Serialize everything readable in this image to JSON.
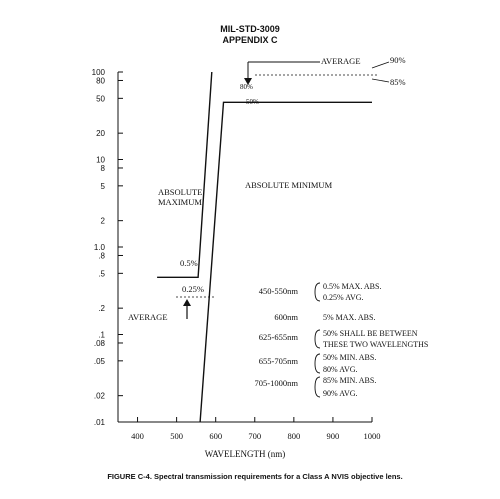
{
  "header": {
    "line1": "MIL-STD-3009",
    "line2": "APPENDIX C"
  },
  "caption": "FIGURE C-4.  Spectral transmission requirements for a Class A NVIS objective lens.",
  "chart_data": {
    "type": "line",
    "xlabel": "WAVELENGTH (nm)",
    "ylabel": "",
    "x_ticks": [
      400,
      500,
      600,
      700,
      800,
      900,
      1000
    ],
    "x_tick_labels": [
      "400",
      "500",
      "600",
      "700",
      "800",
      "900",
      "1000"
    ],
    "y_scale": "log",
    "y_ticks": [
      0.01,
      0.02,
      0.05,
      0.08,
      0.1,
      0.2,
      0.5,
      0.8,
      1.0,
      2,
      5,
      8,
      10,
      20,
      50,
      80,
      100
    ],
    "y_tick_labels": [
      ".01",
      ".02",
      ".05",
      ".08",
      ".1",
      ".2",
      ".5",
      ".8",
      "1.0",
      "2",
      "5",
      "8",
      "10",
      "20",
      "50",
      "80",
      "100"
    ],
    "xlim": [
      350,
      1000
    ],
    "ylim": [
      0.01,
      100
    ],
    "series": [
      {
        "points": [
          [
            450,
            0.45
          ],
          [
            555,
            0.45
          ],
          [
            590,
            100
          ]
        ]
      },
      {
        "points": [
          [
            560,
            0.01
          ],
          [
            620,
            45
          ],
          [
            1000,
            45
          ]
        ]
      }
    ],
    "annotations": {
      "absolute_maximum": [
        "ABSOLUTE",
        "MAXIMUM"
      ],
      "absolute_minimum": "ABSOLUTE MINIMUM",
      "pct_05": "0.5%",
      "pct_025": "0.25%",
      "average_left": "AVERAGE",
      "average_top": "AVERAGE",
      "pct_90": "90%",
      "pct_85": "85%",
      "pct_80": "80%",
      "pct_50": "50%"
    },
    "requirements": [
      {
        "range": "450-550nm",
        "lines": [
          "0.5% MAX. ABS.",
          "0.25% AVG."
        ]
      },
      {
        "range": "600nm",
        "lines": [
          "5% MAX. ABS."
        ]
      },
      {
        "range": "625-655nm",
        "lines": [
          "50% SHALL BE BETWEEN",
          "THESE TWO WAVELENGTHS"
        ]
      },
      {
        "range": "655-705nm",
        "lines": [
          "50% MIN. ABS.",
          "80% AVG."
        ]
      },
      {
        "range": "705-1000nm",
        "lines": [
          "85% MIN. ABS.",
          "90% AVG."
        ]
      }
    ],
    "grid": false,
    "legend": "none"
  }
}
